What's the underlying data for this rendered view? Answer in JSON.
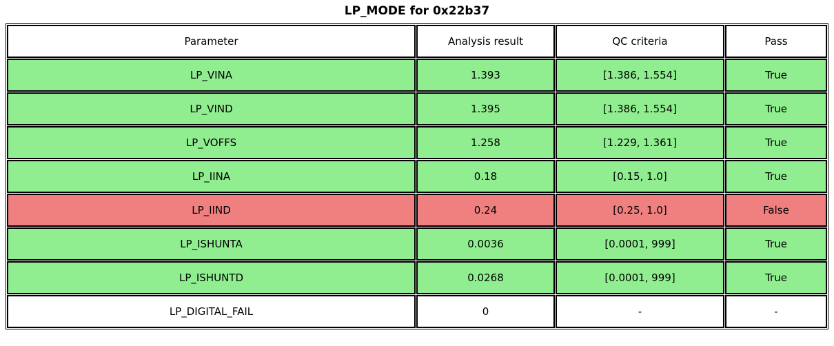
{
  "title": "LP_MODE for 0x22b37",
  "table": {
    "columns": [
      "Parameter",
      "Analysis result",
      "QC criteria",
      "Pass"
    ],
    "rows": [
      {
        "parameter": "LP_VINA",
        "analysis_result": "1.393",
        "qc_criteria": "[1.386, 1.554]",
        "pass": "True",
        "status": "pass"
      },
      {
        "parameter": "LP_VIND",
        "analysis_result": "1.395",
        "qc_criteria": "[1.386, 1.554]",
        "pass": "True",
        "status": "pass"
      },
      {
        "parameter": "LP_VOFFS",
        "analysis_result": "1.258",
        "qc_criteria": "[1.229, 1.361]",
        "pass": "True",
        "status": "pass"
      },
      {
        "parameter": "LP_IINA",
        "analysis_result": "0.18",
        "qc_criteria": "[0.15, 1.0]",
        "pass": "True",
        "status": "pass"
      },
      {
        "parameter": "LP_IIND",
        "analysis_result": "0.24",
        "qc_criteria": "[0.25, 1.0]",
        "pass": "False",
        "status": "fail"
      },
      {
        "parameter": "LP_ISHUNTA",
        "analysis_result": "0.0036",
        "qc_criteria": "[0.0001, 999]",
        "pass": "True",
        "status": "pass"
      },
      {
        "parameter": "LP_ISHUNTD",
        "analysis_result": "0.0268",
        "qc_criteria": "[0.0001, 999]",
        "pass": "True",
        "status": "pass"
      },
      {
        "parameter": "LP_DIGITAL_FAIL",
        "analysis_result": "0",
        "qc_criteria": "-",
        "pass": "-",
        "status": "neutral"
      }
    ],
    "colors": {
      "pass": "#90EE90",
      "fail": "#F08080",
      "neutral": "#FFFFFF",
      "border": "#000000",
      "header_bg": "#FFFFFF"
    }
  },
  "chart_data": {
    "type": "table",
    "title": "LP_MODE for 0x22b37",
    "columns": [
      "Parameter",
      "Analysis result",
      "QC criteria",
      "Pass"
    ],
    "rows": [
      [
        "LP_VINA",
        1.393,
        "[1.386, 1.554]",
        "True"
      ],
      [
        "LP_VIND",
        1.395,
        "[1.386, 1.554]",
        "True"
      ],
      [
        "LP_VOFFS",
        1.258,
        "[1.229, 1.361]",
        "True"
      ],
      [
        "LP_IINA",
        0.18,
        "[0.15, 1.0]",
        "True"
      ],
      [
        "LP_IIND",
        0.24,
        "[0.25, 1.0]",
        "False"
      ],
      [
        "LP_ISHUNTA",
        0.0036,
        "[0.0001, 999]",
        "True"
      ],
      [
        "LP_ISHUNTD",
        0.0268,
        "[0.0001, 999]",
        "True"
      ],
      [
        "LP_DIGITAL_FAIL",
        0,
        "-",
        "-"
      ]
    ],
    "row_status": [
      "pass",
      "pass",
      "pass",
      "pass",
      "fail",
      "pass",
      "pass",
      "neutral"
    ],
    "legend_position": "none",
    "grid": true
  }
}
